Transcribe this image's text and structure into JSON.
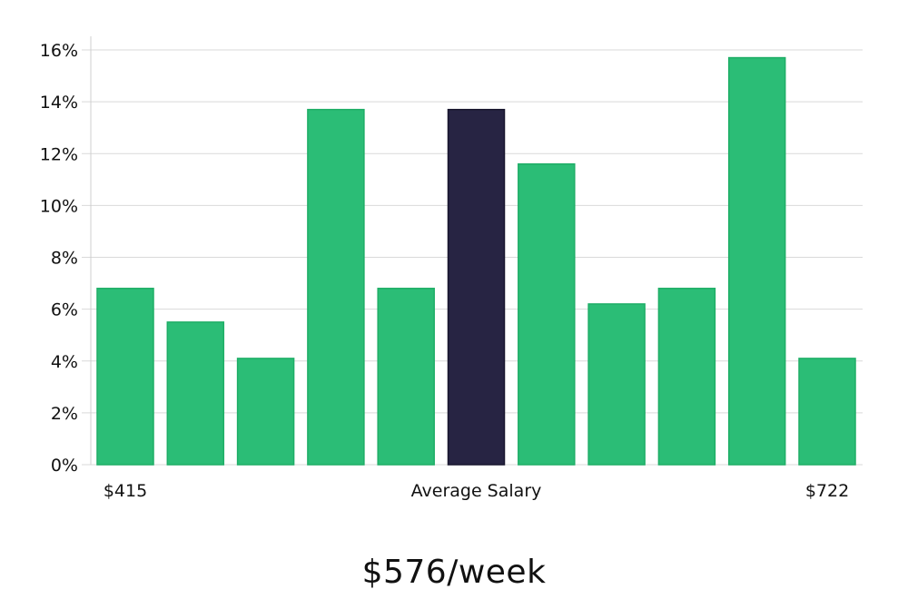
{
  "chart_data": {
    "type": "bar",
    "x_tick_labels": [
      "$415",
      "Average Salary",
      "$722"
    ],
    "values": [
      6.8,
      5.5,
      4.1,
      13.7,
      6.8,
      13.7,
      11.6,
      6.2,
      6.8,
      15.7,
      4.1
    ],
    "highlight_index": 5,
    "ylim": [
      0,
      16
    ],
    "yticks": [
      "0%",
      "2%",
      "4%",
      "6%",
      "8%",
      "10%",
      "12%",
      "14%",
      "16%"
    ],
    "colors": {
      "bar": "#2bbd76",
      "bar_stroke": "#1fae67",
      "highlight": "#272443",
      "highlight_stroke": "#18162e"
    },
    "grid": true
  },
  "caption": "$576/week"
}
